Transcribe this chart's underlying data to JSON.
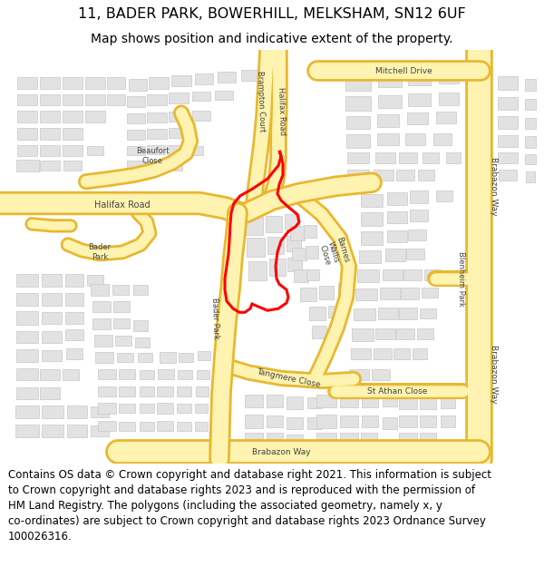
{
  "title": "11, BADER PARK, BOWERHILL, MELKSHAM, SN12 6UF",
  "subtitle": "Map shows position and indicative extent of the property.",
  "footer_line1": "Contains OS data © Crown copyright and database right 2021. This information is subject",
  "footer_line2": "to Crown copyright and database rights 2023 and is reproduced with the permission of",
  "footer_line3": "HM Land Registry. The polygons (including the associated geometry, namely x, y",
  "footer_line4": "co-ordinates) are subject to Crown copyright and database rights 2023 Ordnance Survey",
  "footer_line5": "100026316.",
  "map_bg": "#f7f5f0",
  "road_fill": "#fef3b0",
  "road_stroke": "#e8b830",
  "road_stroke2": "#f0cc50",
  "building_fill": "#e2e2e2",
  "building_stroke": "#c8c8c8",
  "title_fontsize": 11.5,
  "subtitle_fontsize": 10.0,
  "footer_fontsize": 8.5,
  "label_fontsize": 6.5,
  "map_xlim": [
    0,
    600
  ],
  "map_ylim": [
    0,
    440
  ]
}
